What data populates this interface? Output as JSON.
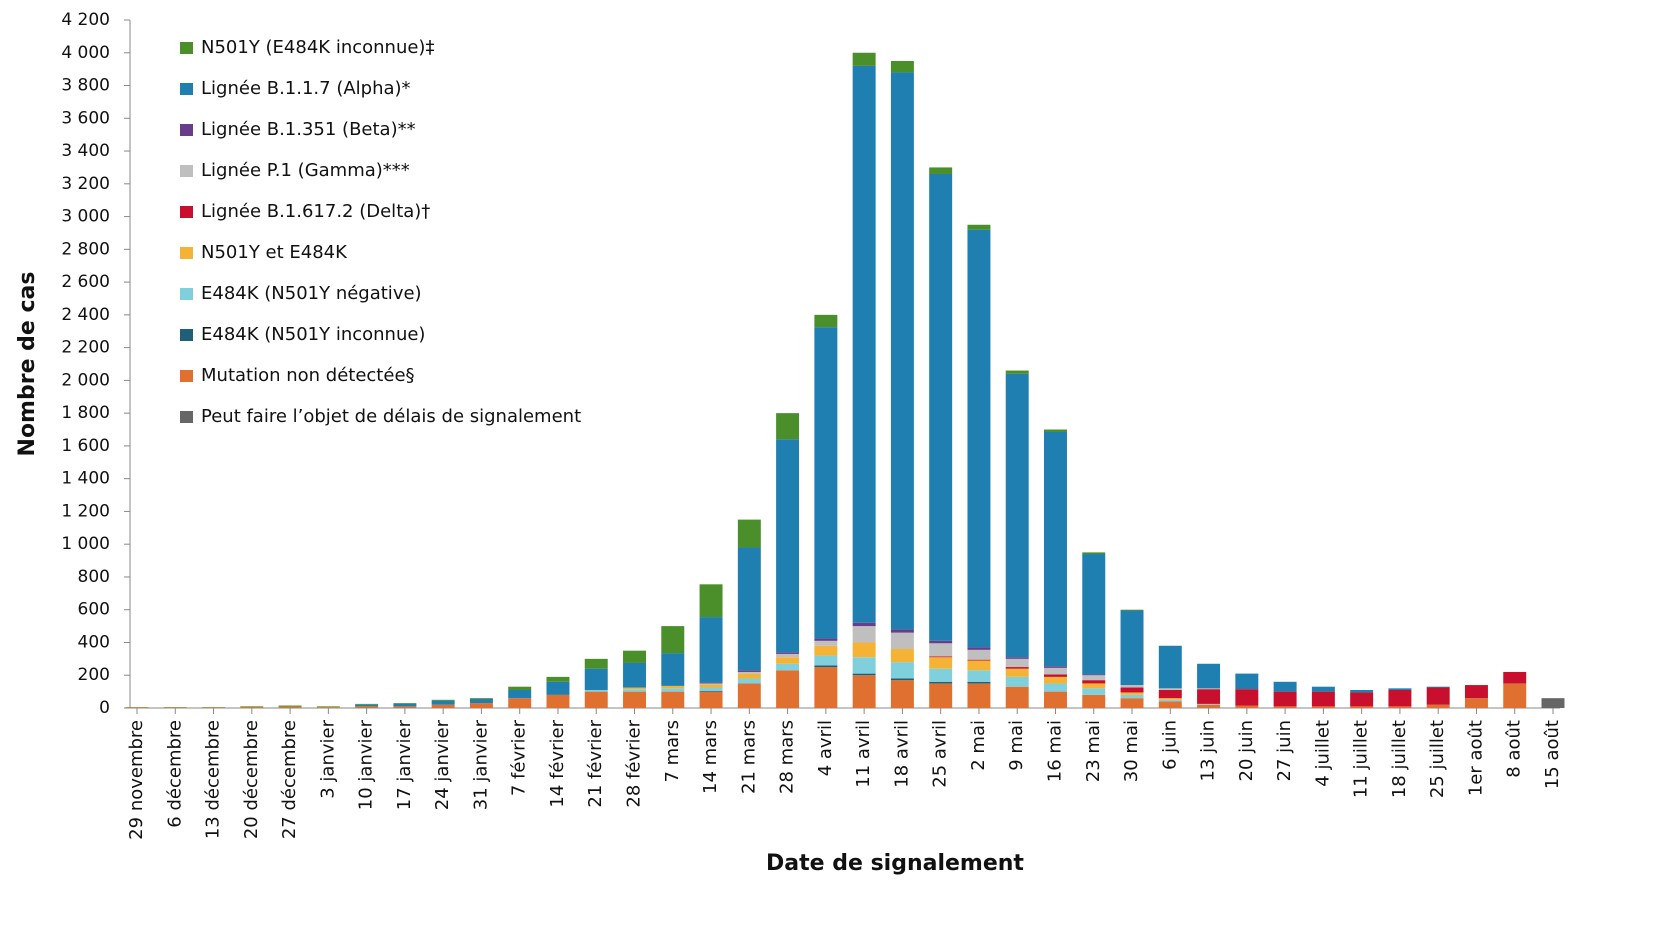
{
  "chart_data": {
    "type": "stacked-bar",
    "xlabel": "Date de signalement",
    "ylabel": "Nombre de cas",
    "categories": [
      "29 novembre",
      "6 décembre",
      "13 décembre",
      "20 décembre",
      "27 décembre",
      "3 janvier",
      "10 janvier",
      "17 janvier",
      "24 janvier",
      "31 janvier",
      "7 février",
      "14 février",
      "21 février",
      "28 février",
      "7 mars",
      "14 mars",
      "21 mars",
      "28 mars",
      "4 avril",
      "11 avril",
      "18 avril",
      "25 avril",
      "2 mai",
      "9 mai",
      "16 mai",
      "23 mai",
      "30 mai",
      "6 juin",
      "13 juin",
      "20 juin",
      "27 juin",
      "4 juillet",
      "11 juillet",
      "18 juillet",
      "25 juillet",
      "1er août",
      "8 août",
      "15 août"
    ],
    "ylim": [
      0,
      4200
    ],
    "yticks": [
      0,
      200,
      400,
      600,
      800,
      {
        "value": 1000,
        "label": "1 000"
      },
      {
        "value": 1200,
        "label": "1 200"
      },
      {
        "value": 1400,
        "label": "1 400"
      },
      {
        "value": 1600,
        "label": "1 600"
      },
      {
        "value": 1800,
        "label": "1 800"
      },
      {
        "value": 2000,
        "label": "2 000"
      },
      {
        "value": 2200,
        "label": "2 200"
      },
      {
        "value": 2400,
        "label": "2 400"
      },
      {
        "value": 2600,
        "label": "2 600"
      },
      {
        "value": 2800,
        "label": "2 800"
      },
      {
        "value": 3000,
        "label": "3 000"
      },
      {
        "value": 3200,
        "label": "3 200"
      },
      {
        "value": 3400,
        "label": "3 400"
      },
      {
        "value": 3600,
        "label": "3 600"
      },
      {
        "value": 3800,
        "label": "3 800"
      },
      {
        "value": 4000,
        "label": "4 000"
      },
      {
        "value": 4200,
        "label": "4 200"
      }
    ],
    "legend": "upper left",
    "series": [
      {
        "name": "N501Y (E484K inconnue)‡",
        "color": "#4a8f2a",
        "values": [
          2,
          2,
          2,
          4,
          7,
          5,
          5,
          5,
          5,
          5,
          20,
          30,
          60,
          75,
          165,
          200,
          170,
          160,
          75,
          80,
          70,
          40,
          30,
          20,
          15,
          10,
          5,
          0,
          0,
          0,
          0,
          0,
          0,
          0,
          0,
          0,
          0,
          0
        ]
      },
      {
        "name": "Lignée B.1.1.7 (Alpha)*",
        "color": "#1f7fb0",
        "values": [
          0,
          0,
          0,
          0,
          0,
          0,
          10,
          15,
          25,
          25,
          50,
          80,
          130,
          150,
          200,
          400,
          750,
          1300,
          1900,
          3400,
          3400,
          2850,
          2550,
          1730,
          1430,
          735,
          455,
          260,
          150,
          95,
          60,
          30,
          15,
          10,
          5,
          0,
          0,
          0
        ]
      },
      {
        "name": "Lignée B.1.351 (Beta)**",
        "color": "#6a3d8a",
        "values": [
          0,
          0,
          0,
          0,
          0,
          0,
          0,
          0,
          0,
          0,
          0,
          0,
          0,
          0,
          0,
          5,
          10,
          10,
          15,
          20,
          20,
          15,
          15,
          10,
          10,
          5,
          0,
          0,
          0,
          0,
          0,
          0,
          0,
          0,
          0,
          0,
          0,
          0
        ]
      },
      {
        "name": "Lignée P.1 (Gamma)***",
        "color": "#bfbfbf",
        "values": [
          0,
          0,
          0,
          0,
          0,
          0,
          0,
          0,
          0,
          0,
          0,
          0,
          0,
          0,
          0,
          5,
          10,
          20,
          30,
          100,
          100,
          80,
          60,
          50,
          40,
          30,
          15,
          10,
          5,
          0,
          0,
          0,
          0,
          0,
          0,
          0,
          0,
          0
        ]
      },
      {
        "name": "Lignée B.1.617.2 (Delta)†",
        "color": "#c8102e",
        "values": [
          0,
          0,
          0,
          0,
          0,
          0,
          0,
          0,
          0,
          0,
          0,
          0,
          0,
          0,
          0,
          0,
          0,
          0,
          0,
          0,
          0,
          5,
          5,
          10,
          15,
          20,
          30,
          50,
          90,
          100,
          90,
          90,
          85,
          100,
          105,
          80,
          70,
          0
        ]
      },
      {
        "name": "N501Y et E484K",
        "color": "#f5b335",
        "values": [
          0,
          0,
          0,
          0,
          0,
          0,
          0,
          0,
          0,
          0,
          0,
          0,
          0,
          10,
          15,
          20,
          30,
          40,
          60,
          90,
          80,
          70,
          60,
          50,
          40,
          30,
          15,
          10,
          0,
          0,
          0,
          0,
          0,
          0,
          0,
          0,
          0,
          0
        ]
      },
      {
        "name": "E484K (N501Y négative)",
        "color": "#7fd0dc",
        "values": [
          0,
          0,
          0,
          0,
          0,
          0,
          0,
          0,
          0,
          0,
          0,
          0,
          10,
          15,
          20,
          20,
          30,
          40,
          60,
          100,
          100,
          80,
          70,
          60,
          50,
          40,
          20,
          10,
          5,
          0,
          0,
          0,
          0,
          0,
          0,
          0,
          0,
          0
        ]
      },
      {
        "name": "E484K (N501Y inconnue)",
        "color": "#1f5f7a",
        "values": [
          0,
          0,
          0,
          0,
          0,
          0,
          0,
          0,
          0,
          0,
          0,
          0,
          0,
          0,
          0,
          5,
          0,
          0,
          10,
          10,
          10,
          10,
          10,
          0,
          0,
          0,
          0,
          0,
          0,
          0,
          0,
          0,
          0,
          0,
          0,
          0,
          0,
          0
        ]
      },
      {
        "name": "Mutation non détectée§",
        "color": "#e07030",
        "values": [
          3,
          3,
          3,
          6,
          8,
          5,
          10,
          10,
          20,
          30,
          60,
          80,
          100,
          100,
          100,
          100,
          150,
          230,
          250,
          200,
          170,
          150,
          150,
          130,
          100,
          80,
          60,
          40,
          20,
          15,
          10,
          10,
          10,
          10,
          20,
          60,
          150,
          0
        ]
      },
      {
        "name": "Peut faire l’objet de délais de signalement",
        "color": "#666666",
        "values": [
          0,
          0,
          0,
          0,
          0,
          0,
          0,
          0,
          0,
          0,
          0,
          0,
          0,
          0,
          0,
          0,
          0,
          0,
          0,
          0,
          0,
          0,
          0,
          0,
          0,
          0,
          0,
          0,
          0,
          0,
          0,
          0,
          0,
          0,
          0,
          0,
          0,
          60
        ]
      }
    ]
  }
}
